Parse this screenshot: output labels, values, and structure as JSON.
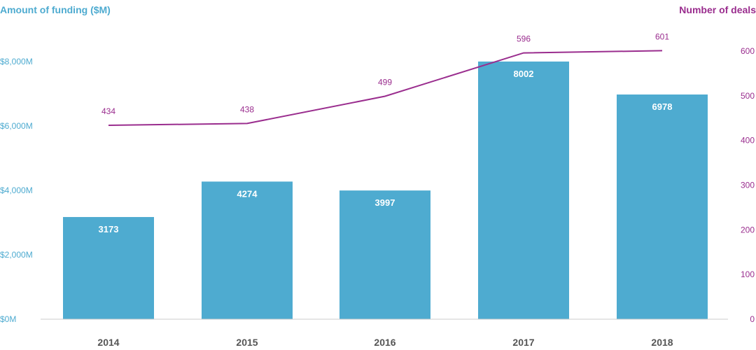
{
  "chart_data": {
    "type": "bar",
    "left_axis_title": "Amount of funding ($M)",
    "right_axis_title": "Number of deals",
    "categories": [
      "2014",
      "2015",
      "2016",
      "2017",
      "2018"
    ],
    "series": [
      {
        "name": "Amount of funding ($M)",
        "type": "bar",
        "axis": "left",
        "values": [
          3173,
          4274,
          3997,
          8002,
          6978
        ],
        "labels": [
          "3173",
          "4274",
          "3997",
          "8002",
          "6978"
        ]
      },
      {
        "name": "Number of deals",
        "type": "line",
        "axis": "right",
        "values": [
          434,
          438,
          499,
          596,
          601
        ],
        "labels": [
          "434",
          "438",
          "499",
          "596",
          "601"
        ]
      }
    ],
    "left_axis": {
      "ylim": [
        0,
        8600
      ],
      "ticks": [
        0,
        2000,
        4000,
        6000,
        8000
      ],
      "tick_labels": [
        "$0M",
        "$2,000M",
        "$4,000M",
        "$6,000M",
        "$8,000M"
      ]
    },
    "right_axis": {
      "ylim": [
        0,
        600
      ],
      "ticks": [
        0,
        100,
        200,
        300,
        400,
        500,
        600
      ],
      "tick_labels": [
        "0",
        "100",
        "200",
        "300",
        "400",
        "500",
        "600"
      ]
    },
    "grid": false,
    "colors": {
      "bar": "#4eabd0",
      "line": "#9a2d8e",
      "bar_label": "#ffffff",
      "axis_line": "#cccccc",
      "year_label": "#555555"
    }
  }
}
